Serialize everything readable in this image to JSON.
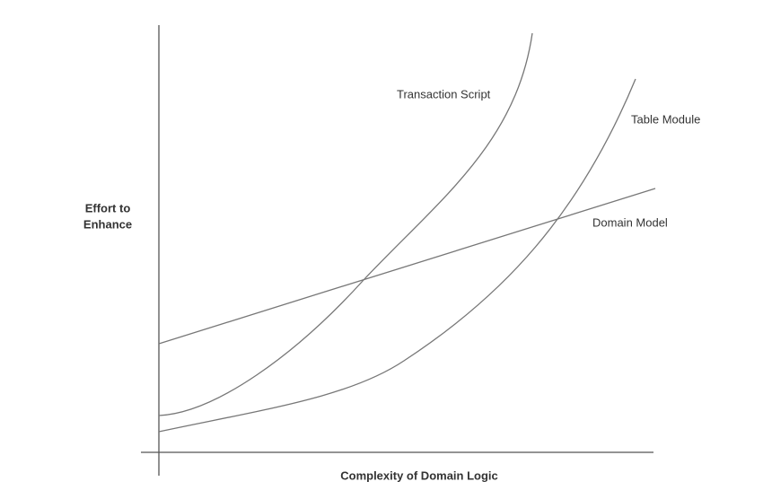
{
  "y_axis": {
    "label_lines": [
      "Effort to",
      "Enhance"
    ]
  },
  "x_axis": {
    "label": "Complexity of Domain Logic"
  },
  "curves": [
    {
      "label": "Transaction Script"
    },
    {
      "label": "Table Module"
    },
    {
      "label": "Domain Model"
    }
  ]
}
